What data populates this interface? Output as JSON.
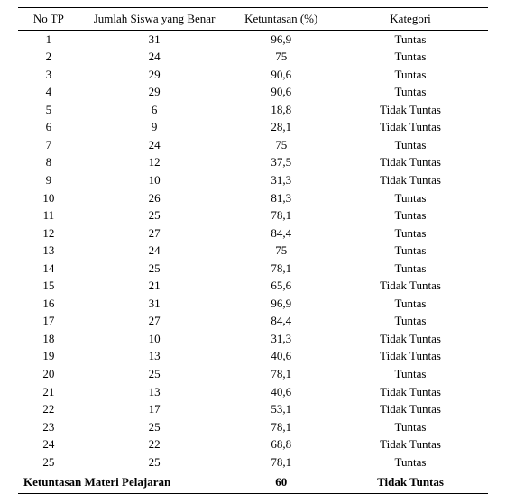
{
  "table": {
    "headers": {
      "col1": "No TP",
      "col2": "Jumlah Siswa yang Benar",
      "col3": "Ketuntasan (%)",
      "col4": "Kategori"
    },
    "rows": [
      {
        "no": "1",
        "jumlah": "31",
        "ketuntasan": "96,9",
        "kategori": "Tuntas"
      },
      {
        "no": "2",
        "jumlah": "24",
        "ketuntasan": "75",
        "kategori": "Tuntas"
      },
      {
        "no": "3",
        "jumlah": "29",
        "ketuntasan": "90,6",
        "kategori": "Tuntas"
      },
      {
        "no": "4",
        "jumlah": "29",
        "ketuntasan": "90,6",
        "kategori": "Tuntas"
      },
      {
        "no": "5",
        "jumlah": "6",
        "ketuntasan": "18,8",
        "kategori": "Tidak Tuntas"
      },
      {
        "no": "6",
        "jumlah": "9",
        "ketuntasan": "28,1",
        "kategori": "Tidak Tuntas"
      },
      {
        "no": "7",
        "jumlah": "24",
        "ketuntasan": "75",
        "kategori": "Tuntas"
      },
      {
        "no": "8",
        "jumlah": "12",
        "ketuntasan": "37,5",
        "kategori": "Tidak Tuntas"
      },
      {
        "no": "9",
        "jumlah": "10",
        "ketuntasan": "31,3",
        "kategori": "Tidak Tuntas"
      },
      {
        "no": "10",
        "jumlah": "26",
        "ketuntasan": "81,3",
        "kategori": "Tuntas"
      },
      {
        "no": "11",
        "jumlah": "25",
        "ketuntasan": "78,1",
        "kategori": "Tuntas"
      },
      {
        "no": "12",
        "jumlah": "27",
        "ketuntasan": "84,4",
        "kategori": "Tuntas"
      },
      {
        "no": "13",
        "jumlah": "24",
        "ketuntasan": "75",
        "kategori": "Tuntas"
      },
      {
        "no": "14",
        "jumlah": "25",
        "ketuntasan": "78,1",
        "kategori": "Tuntas"
      },
      {
        "no": "15",
        "jumlah": "21",
        "ketuntasan": "65,6",
        "kategori": "Tidak Tuntas"
      },
      {
        "no": "16",
        "jumlah": "31",
        "ketuntasan": "96,9",
        "kategori": "Tuntas"
      },
      {
        "no": "17",
        "jumlah": "27",
        "ketuntasan": "84,4",
        "kategori": "Tuntas"
      },
      {
        "no": "18",
        "jumlah": "10",
        "ketuntasan": "31,3",
        "kategori": "Tidak Tuntas"
      },
      {
        "no": "19",
        "jumlah": "13",
        "ketuntasan": "40,6",
        "kategori": "Tidak Tuntas"
      },
      {
        "no": "20",
        "jumlah": "25",
        "ketuntasan": "78,1",
        "kategori": "Tuntas"
      },
      {
        "no": "21",
        "jumlah": "13",
        "ketuntasan": "40,6",
        "kategori": "Tidak Tuntas"
      },
      {
        "no": "22",
        "jumlah": "17",
        "ketuntasan": "53,1",
        "kategori": "Tidak Tuntas"
      },
      {
        "no": "23",
        "jumlah": "25",
        "ketuntasan": "78,1",
        "kategori": "Tuntas"
      },
      {
        "no": "24",
        "jumlah": "22",
        "ketuntasan": "68,8",
        "kategori": "Tidak Tuntas"
      },
      {
        "no": "25",
        "jumlah": "25",
        "ketuntasan": "78,1",
        "kategori": "Tuntas"
      }
    ],
    "summary": {
      "label": "Ketuntasan Materi Pelajaran",
      "value": "60",
      "kategori": "Tidak Tuntas"
    }
  }
}
